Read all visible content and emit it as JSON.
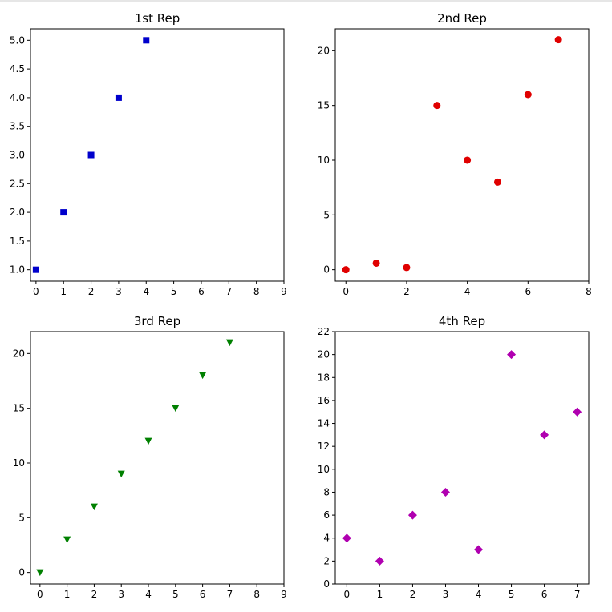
{
  "chart_data": [
    {
      "type": "scatter",
      "title": "1st Rep",
      "marker": "square",
      "color": "#0000cc",
      "x": [
        0,
        1,
        2,
        3,
        4
      ],
      "y": [
        1.0,
        2.0,
        3.0,
        4.0,
        5.0
      ],
      "xlim": [
        -0.2,
        9
      ],
      "ylim": [
        0.8,
        5.2
      ],
      "xticks": [
        0,
        1,
        2,
        3,
        4,
        5,
        6,
        7,
        8,
        9
      ],
      "yticks": [
        1.0,
        1.5,
        2.0,
        2.5,
        3.0,
        3.5,
        4.0,
        4.5,
        5.0
      ],
      "ytick_labels": [
        "1.0",
        "1.5",
        "2.0",
        "2.5",
        "3.0",
        "3.5",
        "4.0",
        "4.5",
        "5.0"
      ]
    },
    {
      "type": "scatter",
      "title": "2nd Rep",
      "marker": "circle",
      "color": "#e00000",
      "x": [
        0,
        1,
        2,
        3,
        4,
        5,
        6,
        7
      ],
      "y": [
        0,
        0.6,
        0.2,
        15,
        10,
        8,
        16,
        21
      ],
      "xlim": [
        -0.35,
        8
      ],
      "ylim": [
        -1.05,
        22
      ],
      "xticks": [
        0,
        2,
        4,
        6,
        8
      ],
      "yticks": [
        0,
        5,
        10,
        15,
        20
      ],
      "ytick_labels": [
        "0",
        "5",
        "10",
        "15",
        "20"
      ]
    },
    {
      "type": "scatter",
      "title": "3rd Rep",
      "marker": "triangle-down",
      "color": "#008000",
      "x": [
        0,
        1,
        2,
        3,
        4,
        5,
        6,
        7
      ],
      "y": [
        0,
        3,
        6,
        9,
        12,
        15,
        18,
        21
      ],
      "xlim": [
        -0.35,
        9
      ],
      "ylim": [
        -1.05,
        22
      ],
      "xticks": [
        0,
        1,
        2,
        3,
        4,
        5,
        6,
        7,
        8,
        9
      ],
      "yticks": [
        0,
        5,
        10,
        15,
        20
      ],
      "ytick_labels": [
        "0",
        "5",
        "10",
        "15",
        "20"
      ]
    },
    {
      "type": "scatter",
      "title": "4th Rep",
      "marker": "diamond",
      "color": "#b000b0",
      "x": [
        0,
        1,
        2,
        3,
        4,
        5,
        6,
        7
      ],
      "y": [
        4,
        2,
        6,
        8,
        3,
        20,
        13,
        15
      ],
      "xlim": [
        -0.35,
        7.35
      ],
      "ylim": [
        0,
        22
      ],
      "xticks": [
        0,
        1,
        2,
        3,
        4,
        5,
        6,
        7
      ],
      "yticks": [
        0,
        2,
        4,
        6,
        8,
        10,
        12,
        14,
        16,
        18,
        20,
        22
      ],
      "ytick_labels": [
        "0",
        "2",
        "4",
        "6",
        "8",
        "10",
        "12",
        "14",
        "16",
        "18",
        "20",
        "22"
      ]
    }
  ]
}
